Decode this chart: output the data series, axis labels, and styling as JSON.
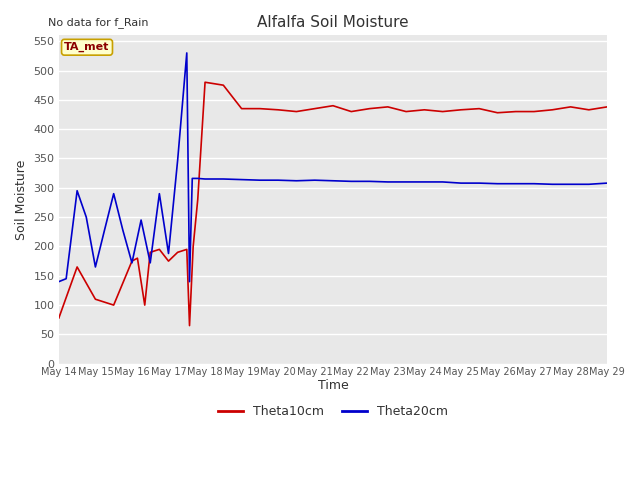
{
  "title": "Alfalfa Soil Moisture",
  "subtitle": "No data for f_Rain",
  "ylabel": "Soil Moisture",
  "xlabel": "Time",
  "legend_label": "TA_met",
  "ylim": [
    0,
    560
  ],
  "yticks": [
    0,
    50,
    100,
    150,
    200,
    250,
    300,
    350,
    400,
    450,
    500,
    550
  ],
  "x_labels": [
    "May 14",
    "May 15",
    "May 16",
    "May 17",
    "May 18",
    "May 19",
    "May 20",
    "May 21",
    "May 22",
    "May 23",
    "May 24",
    "May 25",
    "May 26",
    "May 27",
    "May 28",
    "May 29"
  ],
  "red_color": "#cc0000",
  "blue_color": "#0000cc",
  "fig_bg_color": "#ffffff",
  "plot_bg_color": "#e8e8e8",
  "grid_color": "#ffffff",
  "theta10_label": "Theta10cm",
  "theta20_label": "Theta20cm",
  "red_x": [
    0,
    1,
    2,
    3,
    4,
    4.3,
    4.7,
    5,
    5.5,
    6,
    6.5,
    7,
    7.15,
    7.35,
    7.6,
    8,
    9,
    10,
    11,
    12,
    13,
    14,
    15,
    16,
    17,
    18,
    19,
    20,
    21,
    22,
    23,
    24,
    25,
    26,
    27,
    28,
    29,
    30
  ],
  "red_y": [
    78,
    165,
    110,
    100,
    175,
    180,
    100,
    190,
    195,
    175,
    190,
    195,
    65,
    200,
    280,
    480,
    475,
    435,
    435,
    433,
    430,
    435,
    440,
    430,
    435,
    438,
    430,
    433,
    430,
    433,
    435,
    428,
    430,
    430,
    433,
    438,
    433,
    438
  ],
  "blue_x": [
    0,
    0.4,
    1,
    1.5,
    2,
    2.5,
    3,
    3.5,
    4,
    4.5,
    5,
    5.5,
    6,
    6.5,
    7,
    7.15,
    7.3,
    7.6,
    8,
    9,
    10,
    11,
    12,
    13,
    14,
    15,
    16,
    17,
    18,
    19,
    20,
    21,
    22,
    23,
    24,
    25,
    26,
    27,
    28,
    29,
    30
  ],
  "blue_y": [
    140,
    145,
    295,
    250,
    165,
    228,
    290,
    228,
    172,
    245,
    172,
    290,
    188,
    347,
    530,
    140,
    316,
    316,
    315,
    315,
    314,
    313,
    313,
    312,
    313,
    312,
    311,
    311,
    310,
    310,
    310,
    310,
    308,
    308,
    307,
    307,
    307,
    306,
    306,
    306,
    308
  ]
}
